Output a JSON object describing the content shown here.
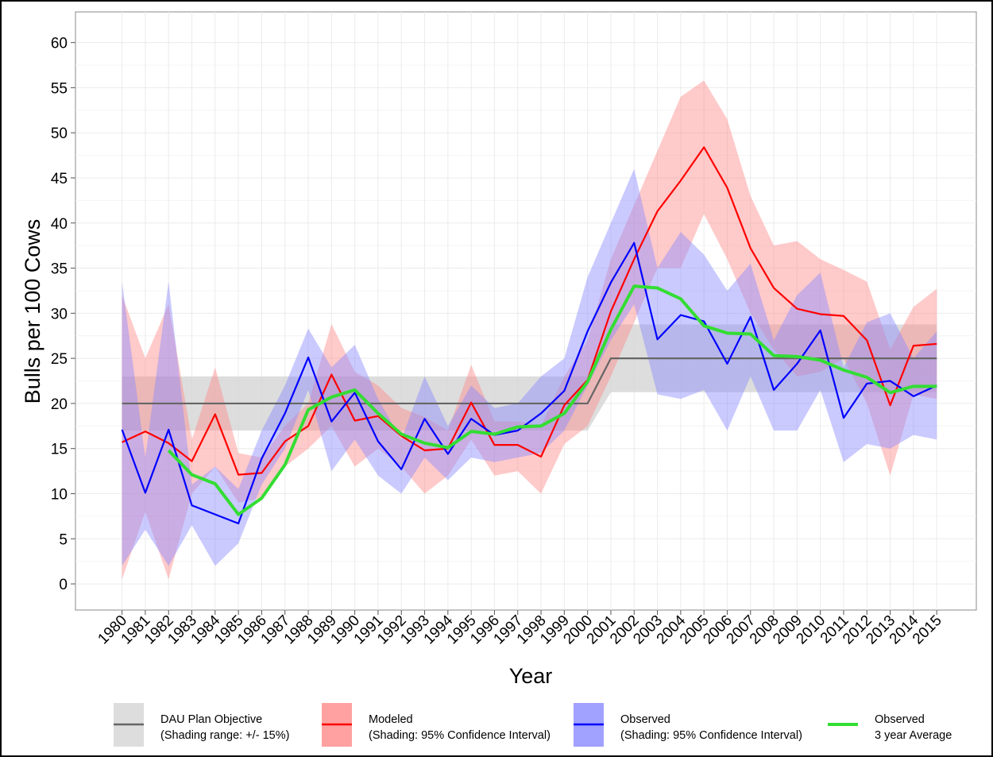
{
  "chart_data": {
    "type": "line",
    "x_label": "Year",
    "y_label": "Bulls per 100 Cows",
    "x": [
      1980,
      1981,
      1982,
      1983,
      1984,
      1985,
      1986,
      1987,
      1988,
      1989,
      1990,
      1991,
      1992,
      1993,
      1994,
      1995,
      1996,
      1997,
      1998,
      1999,
      2000,
      2001,
      2002,
      2003,
      2004,
      2005,
      2006,
      2007,
      2008,
      2009,
      2010,
      2011,
      2012,
      2013,
      2014,
      2015
    ],
    "xlim": [
      1978,
      2016.7
    ],
    "xticks": [
      1980,
      1981,
      1982,
      1983,
      1984,
      1985,
      1986,
      1987,
      1988,
      1989,
      1990,
      1991,
      1992,
      1993,
      1994,
      1995,
      1996,
      1997,
      1998,
      1999,
      2000,
      2001,
      2002,
      2003,
      2004,
      2005,
      2006,
      2007,
      2008,
      2009,
      2010,
      2011,
      2012,
      2013,
      2014,
      2015
    ],
    "ylim": [
      -2.9,
      63.4
    ],
    "yticks": [
      0,
      5,
      10,
      15,
      20,
      25,
      30,
      35,
      40,
      45,
      50,
      55,
      60
    ],
    "grid": true,
    "series": [
      {
        "name": "DAU Plan Objective",
        "shading": "(Shading range: +/- 15%)",
        "color": "#666666",
        "fill": "#d4d4d4",
        "values": [
          20,
          20,
          20,
          20,
          20,
          20,
          20,
          20,
          20,
          20,
          20,
          20,
          20,
          20,
          20,
          20,
          20,
          20,
          20,
          20,
          20,
          25,
          25,
          25,
          25,
          25,
          25,
          25,
          25,
          25,
          25,
          25,
          25,
          25,
          25,
          25
        ],
        "lower": [
          17,
          17,
          17,
          17,
          17,
          17,
          17,
          17,
          17,
          17,
          17,
          17,
          17,
          17,
          17,
          17,
          17,
          17,
          17,
          17,
          17,
          21.25,
          21.25,
          21.25,
          21.25,
          21.25,
          21.25,
          21.25,
          21.25,
          21.25,
          21.25,
          21.25,
          21.25,
          21.25,
          21.25,
          21.25
        ],
        "upper": [
          23,
          23,
          23,
          23,
          23,
          23,
          23,
          23,
          23,
          23,
          23,
          23,
          23,
          23,
          23,
          23,
          23,
          23,
          23,
          23,
          23,
          28.75,
          28.75,
          28.75,
          28.75,
          28.75,
          28.75,
          28.75,
          28.75,
          28.75,
          28.75,
          28.75,
          28.75,
          28.75,
          28.75,
          28.75
        ]
      },
      {
        "name": "Modeled",
        "shading": "(Shading: 95% Confidence Interval)",
        "color": "#ff0000",
        "fill": "#ff8a8a",
        "values": [
          15.7,
          16.9,
          15.6,
          13.6,
          18.8,
          12.1,
          12.3,
          15.8,
          17.5,
          23.2,
          18.1,
          18.6,
          16.4,
          14.8,
          15.0,
          20.1,
          15.4,
          15.4,
          14.1,
          19.8,
          22.6,
          30.2,
          36.0,
          41.3,
          44.7,
          48.4,
          43.9,
          37.2,
          32.8,
          30.5,
          29.9,
          29.7,
          27.0,
          19.8,
          26.4,
          26.6
        ],
        "lower": [
          0.5,
          8,
          0.5,
          10,
          13,
          9,
          9.5,
          13,
          15,
          17.5,
          13,
          15,
          13,
          10,
          12,
          16,
          12,
          12.5,
          10,
          15.5,
          17.5,
          23,
          29,
          35,
          35,
          41,
          36,
          30,
          26,
          23,
          23.5,
          25,
          20,
          12,
          21,
          20.5
        ],
        "upper": [
          32,
          25,
          31,
          16,
          24,
          14.5,
          14,
          17.5,
          20,
          28.8,
          23.5,
          22,
          19.5,
          18.5,
          17,
          24.3,
          18,
          18,
          17.5,
          23,
          27,
          36,
          42,
          48,
          54,
          55.8,
          51.5,
          43,
          37.5,
          38,
          36,
          34.8,
          33.5,
          26,
          30.7,
          32.7
        ]
      },
      {
        "name": "Observed",
        "shading": "(Shading: 95% Confidence Interval)",
        "color": "#0000ff",
        "fill": "#8a8aff",
        "values": [
          17.1,
          10.1,
          17.1,
          8.7,
          7.7,
          6.7,
          13.9,
          18.9,
          25.1,
          18.0,
          21.2,
          15.8,
          12.7,
          18.3,
          14.4,
          18.3,
          16.5,
          17.0,
          18.9,
          21.4,
          28.0,
          33.4,
          37.8,
          27.1,
          29.8,
          29.1,
          24.4,
          29.6,
          21.5,
          24.4,
          28.1,
          18.4,
          22.2,
          22.5,
          20.8,
          22.0
        ],
        "lower": [
          2,
          6,
          2,
          6.5,
          2,
          4.5,
          11,
          15,
          21.5,
          12.5,
          16,
          12,
          10,
          14,
          11.5,
          14,
          13.5,
          14,
          14.5,
          17,
          22,
          27,
          31,
          21,
          20.5,
          21.5,
          17,
          23,
          17,
          17,
          21.5,
          13.5,
          15.5,
          15,
          16.5,
          16
        ],
        "upper": [
          33.5,
          14,
          33.5,
          11,
          13,
          10.5,
          17,
          22,
          28.3,
          24,
          26.5,
          20.5,
          16,
          23,
          17.5,
          22,
          19.5,
          20,
          23,
          25,
          34,
          40,
          46,
          35,
          39,
          36.5,
          32.5,
          35.5,
          27,
          32,
          34.5,
          24,
          29,
          30,
          25,
          28
        ]
      },
      {
        "name": "Observed",
        "shading": "3 year Average",
        "color": "#33dd33",
        "values": [
          null,
          null,
          14.8,
          12.1,
          11.1,
          7.7,
          9.5,
          13.2,
          19.3,
          20.7,
          21.5,
          18.9,
          16.6,
          15.6,
          15.1,
          16.9,
          16.6,
          17.4,
          17.5,
          18.9,
          22.4,
          28.2,
          33.0,
          32.8,
          31.6,
          28.6,
          27.8,
          27.7,
          25.3,
          25.2,
          24.8,
          23.7,
          22.9,
          21.2,
          21.9,
          21.9
        ]
      }
    ]
  }
}
